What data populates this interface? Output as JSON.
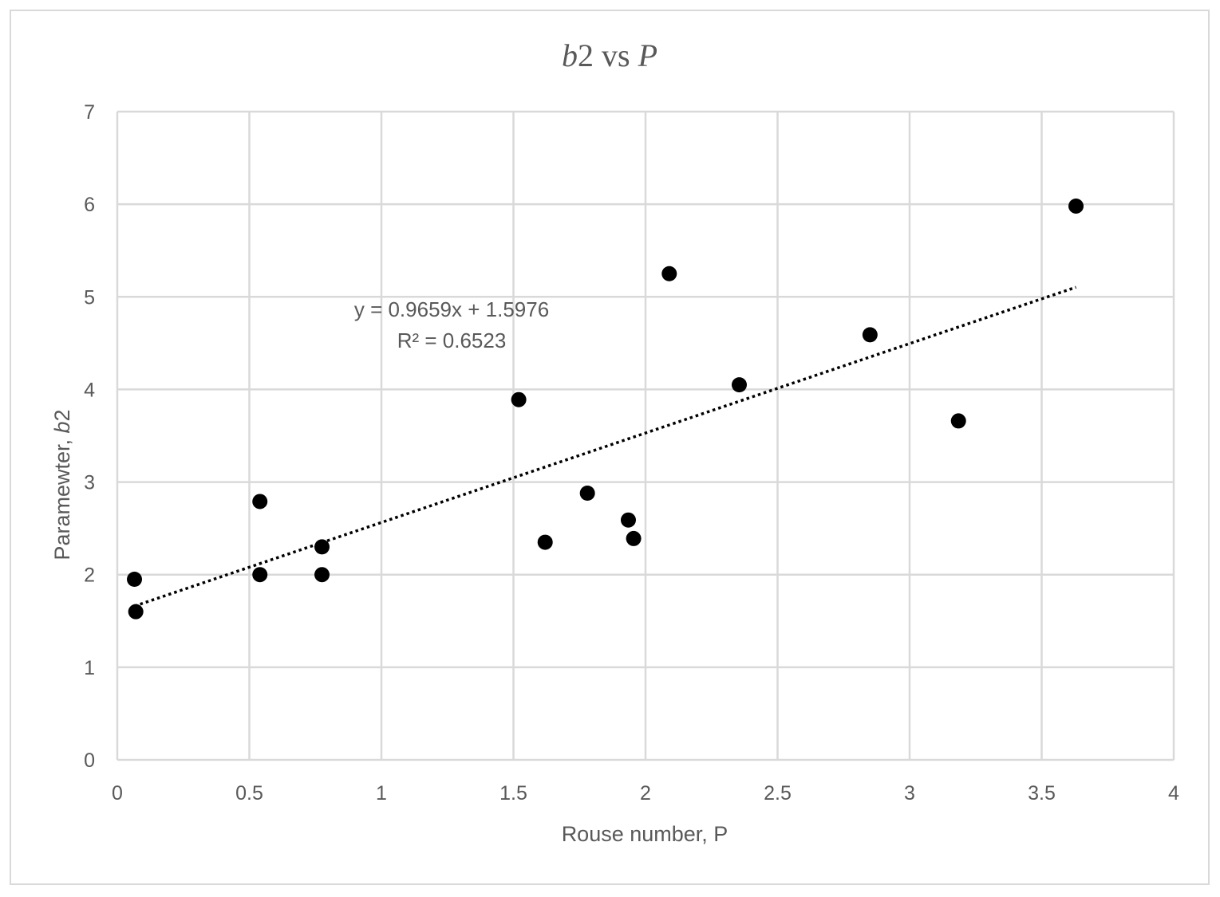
{
  "chart_data": {
    "type": "scatter",
    "title": {
      "var1": "b",
      "num": "2",
      "middle": " vs ",
      "var2": "P"
    },
    "xlabel": "Rouse number, P",
    "ylabel": {
      "prefix": "Paramewter, ",
      "italic": "b",
      "suffix": "2"
    },
    "xlim": [
      0,
      4
    ],
    "ylim": [
      0,
      7
    ],
    "xticks": [
      "0",
      "0.5",
      "1",
      "1.5",
      "2",
      "2.5",
      "3",
      "3.5",
      "4"
    ],
    "yticks": [
      "0",
      "1",
      "2",
      "3",
      "4",
      "5",
      "6",
      "7"
    ],
    "grid": true,
    "points": [
      {
        "x": 0.065,
        "y": 1.95
      },
      {
        "x": 0.07,
        "y": 1.6
      },
      {
        "x": 0.54,
        "y": 2.79
      },
      {
        "x": 0.54,
        "y": 2.0
      },
      {
        "x": 0.775,
        "y": 2.3
      },
      {
        "x": 0.775,
        "y": 2.0
      },
      {
        "x": 1.52,
        "y": 3.89
      },
      {
        "x": 1.62,
        "y": 2.35
      },
      {
        "x": 1.78,
        "y": 2.88
      },
      {
        "x": 1.935,
        "y": 2.59
      },
      {
        "x": 1.955,
        "y": 2.39
      },
      {
        "x": 2.09,
        "y": 5.25
      },
      {
        "x": 2.355,
        "y": 4.05
      },
      {
        "x": 2.85,
        "y": 4.59
      },
      {
        "x": 3.185,
        "y": 3.66
      },
      {
        "x": 3.63,
        "y": 5.98
      }
    ],
    "trendline": {
      "type": "linear",
      "slope": 0.9659,
      "intercept": 1.5976,
      "x_range": [
        0.065,
        3.63
      ],
      "style": "dotted",
      "equation_label": "y = 0.9659x + 1.5976",
      "r2_label": "R² = 0.6523"
    },
    "colors": {
      "marker": "#000000",
      "grid": "#d9d9d9",
      "text": "#595959",
      "trendline": "#000000"
    }
  }
}
